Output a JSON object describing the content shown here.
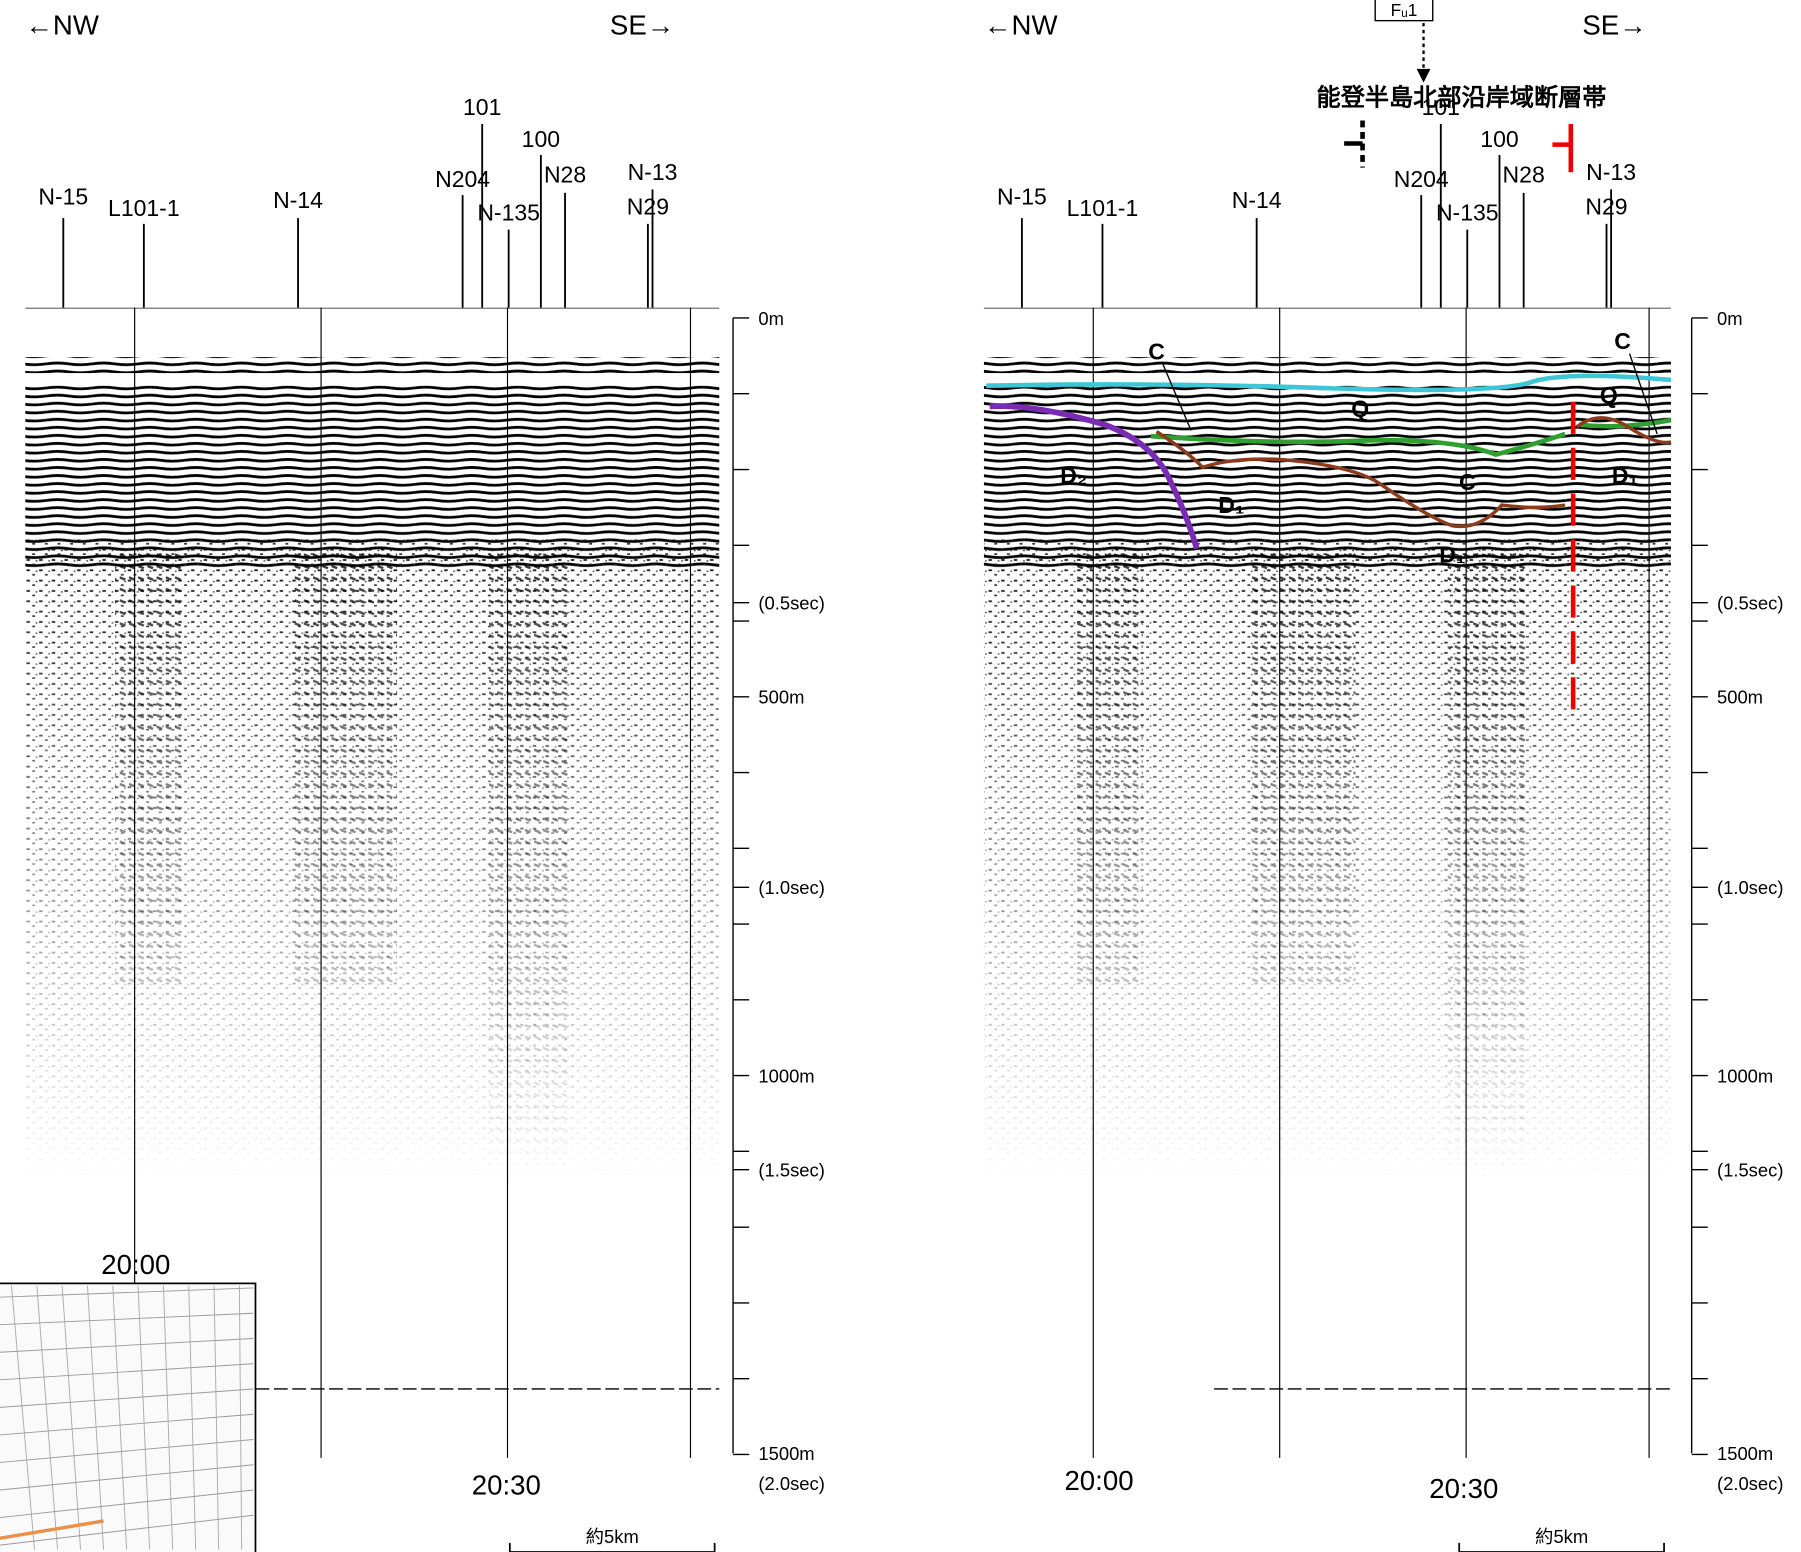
{
  "left": {
    "nw": "←NW",
    "se": "SE→",
    "lines": [
      "N-15",
      "L101-1",
      "N-14",
      "N204",
      "101",
      "100",
      "N28",
      "N-135",
      "N-13",
      "N29"
    ],
    "depth_labels": [
      "0m",
      "(0.5sec)",
      "500m",
      "(1.0sec)",
      "1000m",
      "(1.5sec)",
      "1500m",
      "(2.0sec)"
    ],
    "times": [
      "20:00",
      "20:30"
    ],
    "scale": "約5km"
  },
  "right": {
    "nw": "←NW",
    "se": "SE→",
    "lines": [
      "N-15",
      "L101-1",
      "N-14",
      "N204",
      "101",
      "100",
      "N28",
      "N-135",
      "N-13",
      "N29"
    ],
    "depth_labels": [
      "0m",
      "(0.5sec)",
      "500m",
      "(1.0sec)",
      "1000m",
      "(1.5sec)",
      "1500m",
      "(2.0sec)"
    ],
    "times": [
      "20:00",
      "20:30"
    ],
    "scale": "約5km",
    "fault_id": "Fᵤ1",
    "fault_zone": "能登半島北部沿岸域断層帯",
    "units": [
      "C",
      "Q",
      "C",
      "Q",
      "D₂",
      "D₁",
      "C",
      "D₁",
      "D₁"
    ]
  }
}
